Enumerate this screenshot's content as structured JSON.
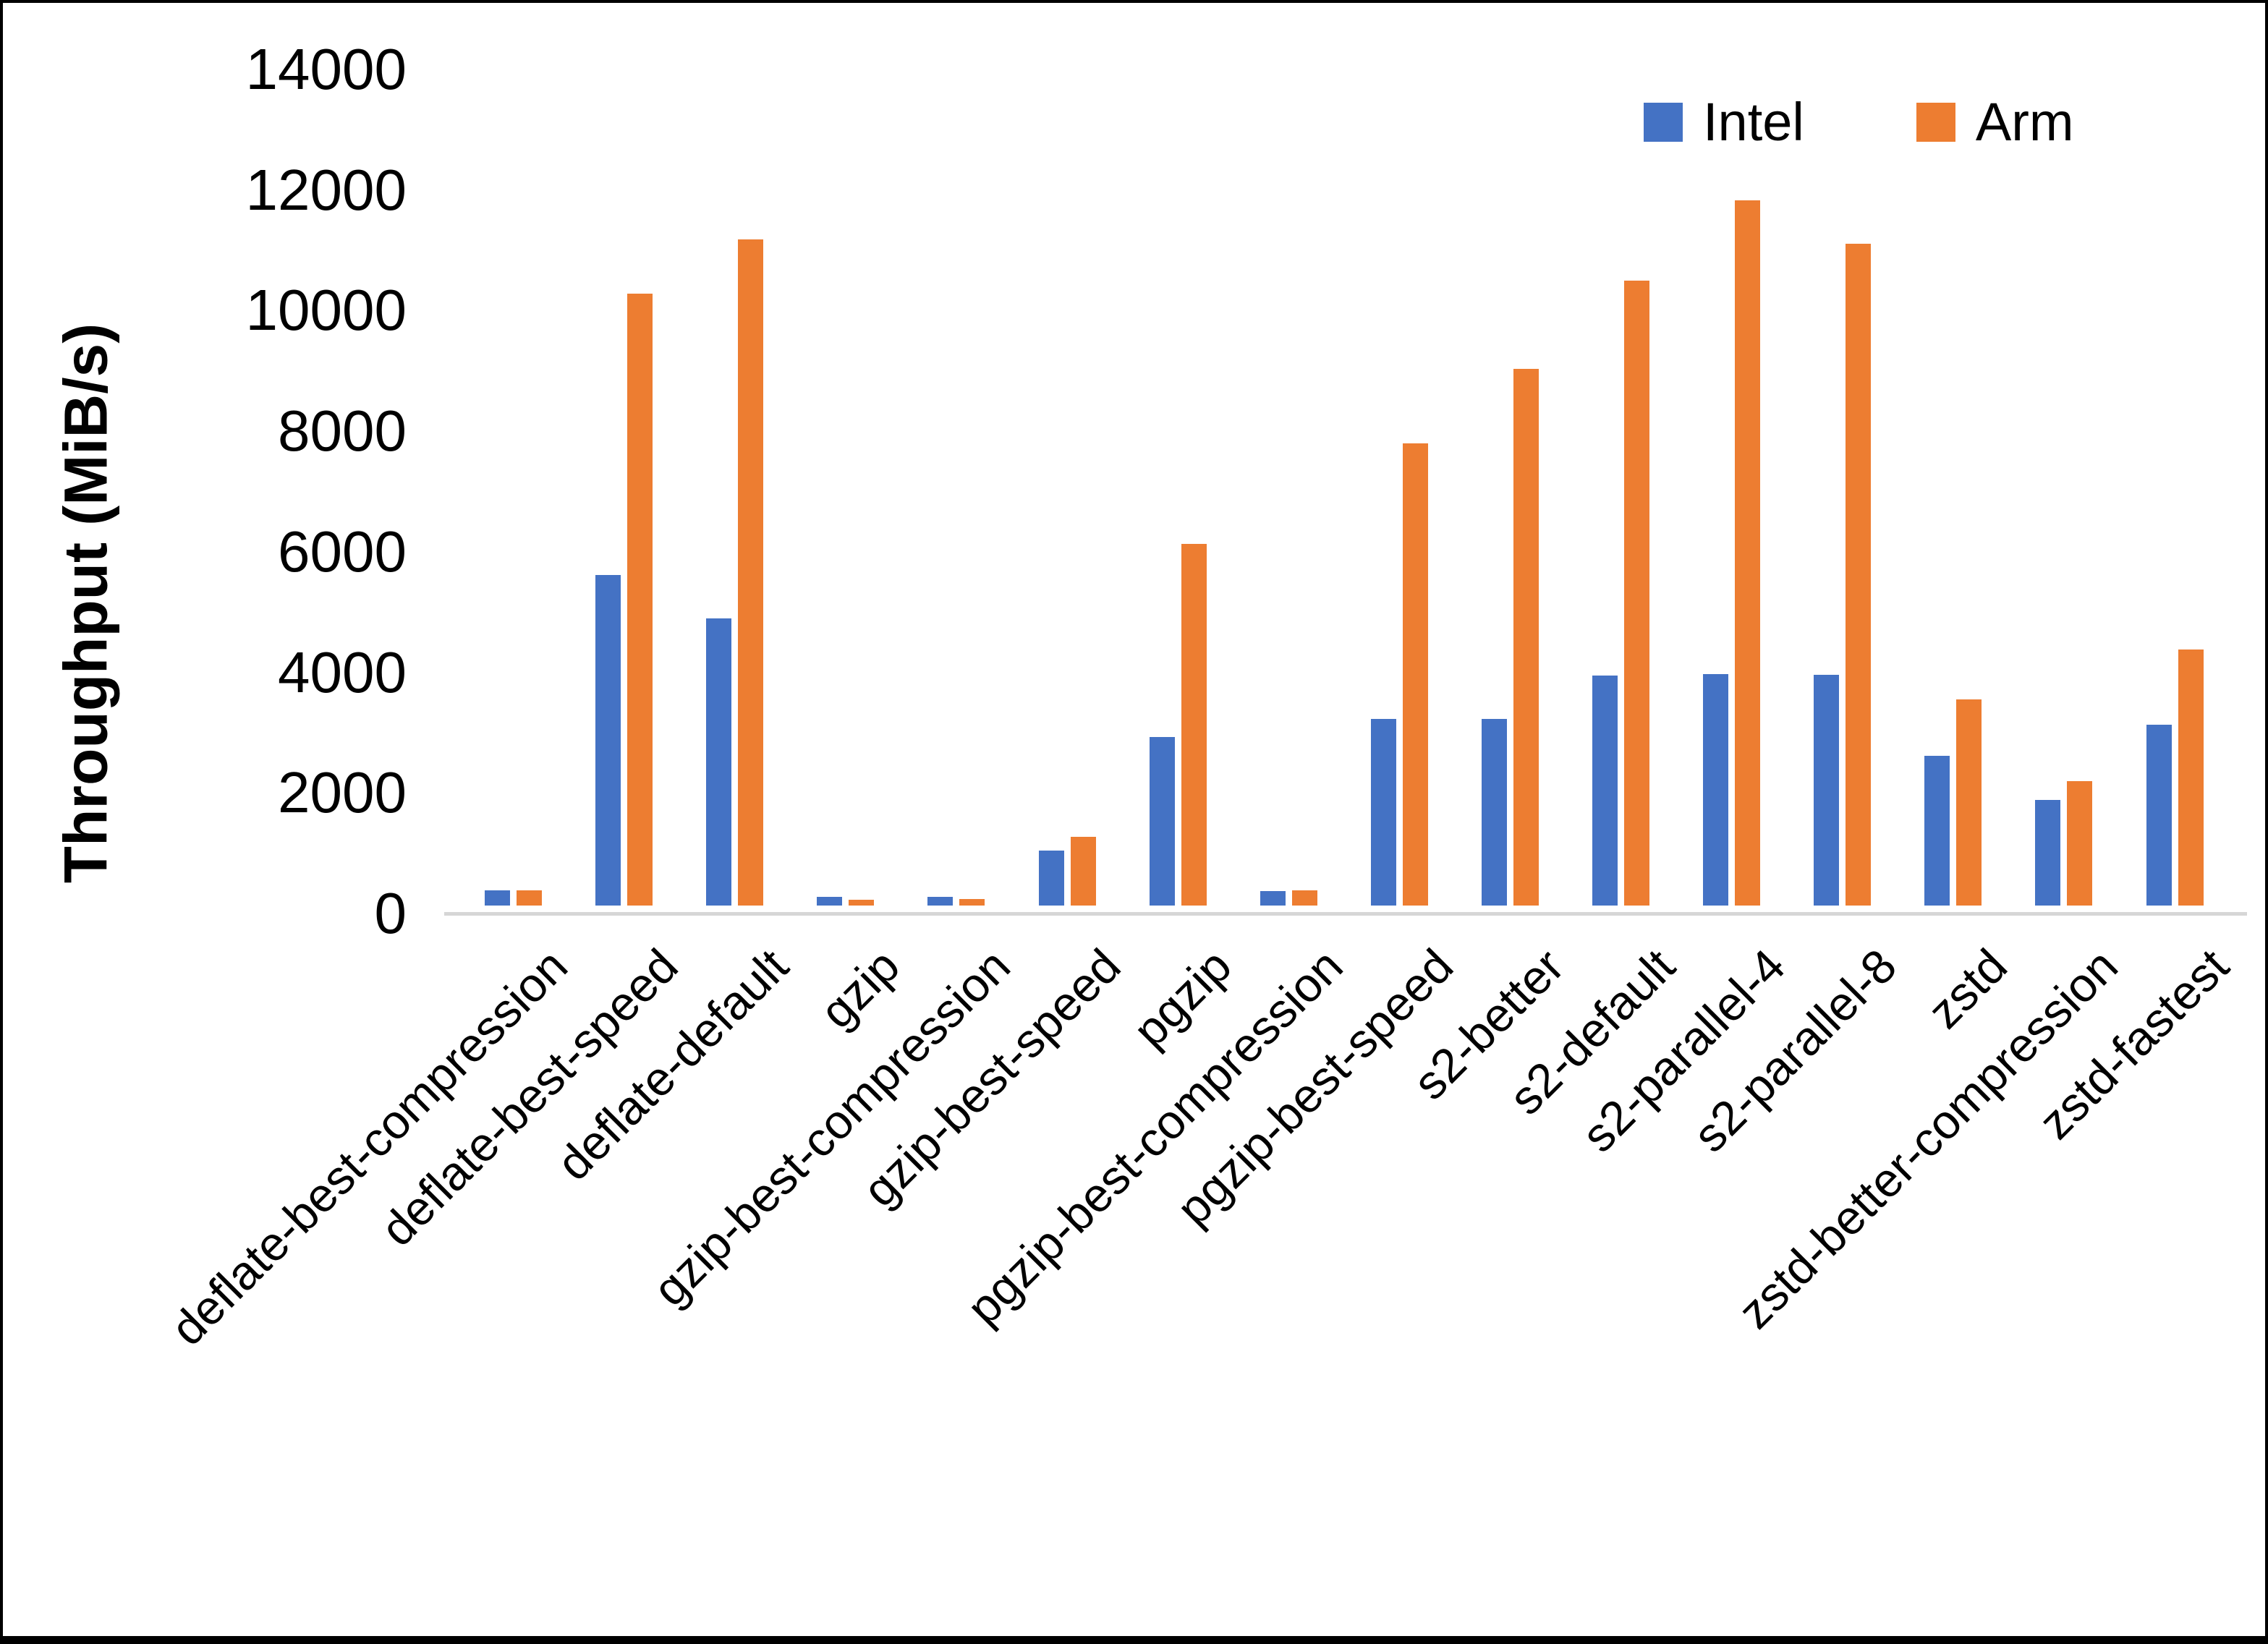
{
  "chart_data": {
    "type": "bar",
    "title": "",
    "xlabel": "",
    "ylabel": "Throughput (MiB/s)",
    "ylim": [
      0,
      14000
    ],
    "ytick_step": 2000,
    "ytick_labels": [
      "0",
      "2000",
      "4000",
      "6000",
      "8000",
      "10000",
      "12000",
      "14000"
    ],
    "grid": false,
    "legend_position": "top-right",
    "categories": [
      "deflate-best-compression",
      "deflate-best-speed",
      "deflate-default",
      "gzip",
      "gzip-best-compression",
      "gzip-best-speed",
      "pgzip",
      "pgzip-best-compression",
      "pgzip-best-speed",
      "s2-better",
      "s2-default",
      "s2-parallel-4",
      "s2-parallel-8",
      "zstd",
      "zstd-better-compression",
      "zstd-fastest"
    ],
    "series": [
      {
        "name": "Intel",
        "color": "#4472C4",
        "values": [
          250,
          5480,
          4760,
          140,
          140,
          910,
          2800,
          240,
          3100,
          3100,
          3820,
          3840,
          3830,
          2480,
          1750,
          3000
        ]
      },
      {
        "name": "Arm",
        "color": "#ED7D31",
        "values": [
          250,
          10150,
          11050,
          100,
          110,
          1140,
          6000,
          250,
          7660,
          8900,
          10360,
          11700,
          10980,
          3420,
          2060,
          4250
        ]
      }
    ]
  },
  "colors": {
    "background": "#FFFFFF",
    "border": "#000000",
    "axis_line": "#D6D6D6",
    "text": "#000000"
  }
}
